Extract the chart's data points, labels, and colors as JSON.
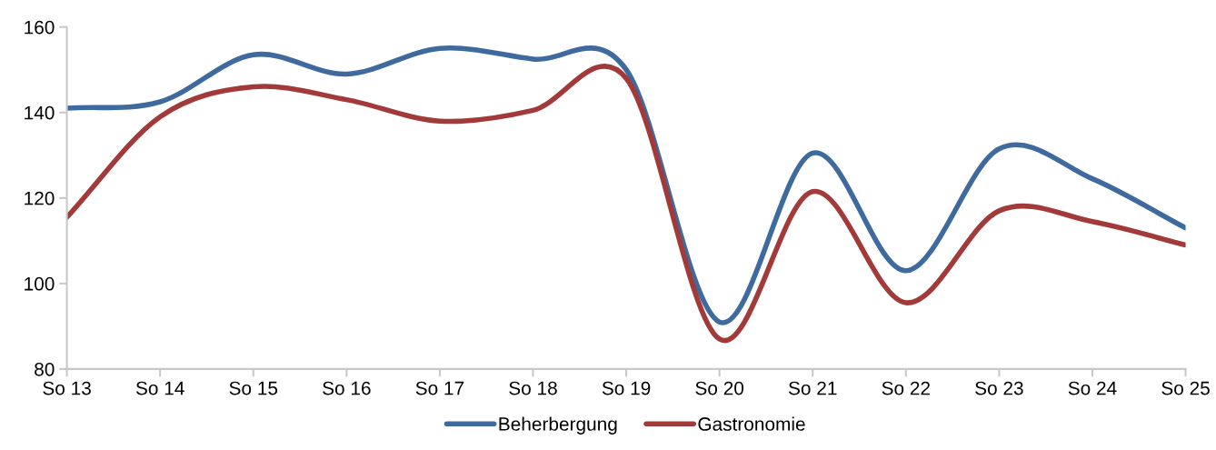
{
  "chart_data": {
    "type": "line",
    "categories": [
      "So 13",
      "So 14",
      "So 15",
      "So 16",
      "So 17",
      "So 18",
      "So 19",
      "So 20",
      "So 21",
      "So 22",
      "So 23",
      "So 24",
      "So 25"
    ],
    "series": [
      {
        "name": "Beherbergung",
        "color": "#3f6a9e",
        "values": [
          141,
          142.5,
          153.5,
          149,
          155,
          152.5,
          150,
          91,
          130.5,
          103,
          131.5,
          124.5,
          113
        ]
      },
      {
        "name": "Gastronomie",
        "color": "#a33a3a",
        "values": [
          115.5,
          139,
          146,
          143,
          138,
          140.5,
          148,
          87,
          121.5,
          95.5,
          117,
          114.5,
          109
        ]
      }
    ],
    "ylim": [
      80,
      160
    ],
    "yticks": [
      80,
      100,
      120,
      140,
      160
    ],
    "grid": false,
    "legend": "bottom",
    "marker": "none",
    "line_style": "solid"
  }
}
